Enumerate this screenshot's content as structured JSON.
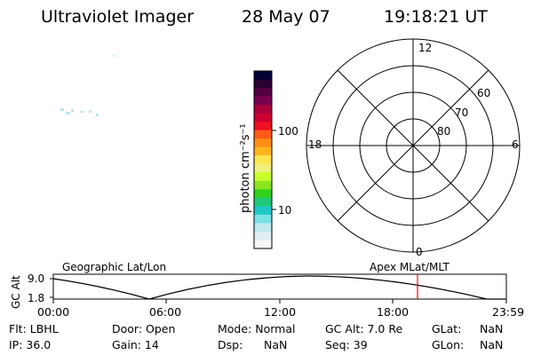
{
  "header": {
    "title": "Ultraviolet Imager",
    "date": "28 May 07",
    "time": "19:18:21 UT"
  },
  "colorbar": {
    "unit_label": "photon cm⁻²s⁻¹",
    "tick_labels": [
      "100",
      "10"
    ],
    "colors": [
      "#000033",
      "#2a0030",
      "#550040",
      "#7a0050",
      "#aa0040",
      "#cc0030",
      "#ee1020",
      "#ff5a18",
      "#ff8c14",
      "#ffb41e",
      "#ffe650",
      "#eef07a",
      "#c8ff28",
      "#8ae61e",
      "#32d21e",
      "#1ec878",
      "#1ec8c8",
      "#78e1e6",
      "#bee9ee",
      "#e1eef2",
      "#f5f7f8"
    ]
  },
  "polar_plot": {
    "mlt_labels": {
      "top": "12",
      "left": "18",
      "right": "6",
      "bottom": "0"
    },
    "lat_labels": [
      "60",
      "70",
      "80"
    ]
  },
  "timeline": {
    "left_title": "Geographic Lat/Lon",
    "right_title": "Apex MLat/MLT",
    "y_axis_label": "GC Alt",
    "y_ticks": [
      "9.0",
      "1.8"
    ],
    "x_ticks": [
      "00:00",
      "06:00",
      "12:00",
      "18:00",
      "23:59"
    ],
    "cursor_time": "19:18:21",
    "cursor_color": "#ff0000"
  },
  "status": {
    "flt": "Flt: LBHL",
    "ip": "IP: 36.0",
    "door": "Door: Open",
    "gain": "Gain: 14",
    "mode": "Mode: Normal",
    "dsp": "Dsp:",
    "dsp_val": "NaN",
    "gcalt": "GC Alt: 7.0 Re",
    "seq": "Seq: 39",
    "glat": "GLat:",
    "glat_val": "NaN",
    "glon": "GLon:",
    "glon_val": "NaN"
  }
}
